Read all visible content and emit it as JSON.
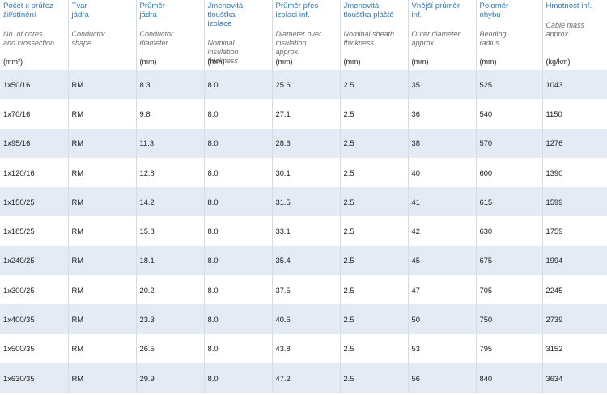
{
  "headers": [
    {
      "cz": "Počet x průřez\nžil/stínění",
      "en": "No. of cores\nand crossection",
      "unit": "(mm²)"
    },
    {
      "cz": "Tvar\njádra",
      "en": "Conductor\nshape",
      "unit": ""
    },
    {
      "cz": "Průměr\njádra",
      "en": "Conductor\ndiameter",
      "unit": "(mm)"
    },
    {
      "cz": "Jmenovitá\ntloušťka\nizolace",
      "en": "Nominal\ninsulation\nthickness",
      "unit": "(mm)"
    },
    {
      "cz": "Průměr přes\nizolaci inf.",
      "en": "Diameter over\ninsulation\napprox.",
      "unit": "(mm)"
    },
    {
      "cz": "Jmenovitá\ntloušťka pláště",
      "en": "Nominal sheath\nthickness",
      "unit": "(mm)"
    },
    {
      "cz": "Vnější průměr\ninf.",
      "en": "Outer diameter\napprox.",
      "unit": "(mm)"
    },
    {
      "cz": "Poloměr\nohybu",
      "en": "Bending\nradius",
      "unit": "(mm)"
    },
    {
      "cz": "Hmotnost inf.",
      "en": "Cable mass\napprox.",
      "unit": "(kg/km)"
    }
  ],
  "rows": [
    [
      "1x50/16",
      "RM",
      "8.3",
      "8.0",
      "25.6",
      "2.5",
      "35",
      "525",
      "1043"
    ],
    [
      "1x70/16",
      "RM",
      "9.8",
      "8.0",
      "27.1",
      "2.5",
      "36",
      "540",
      "1150"
    ],
    [
      "1x95/16",
      "RM",
      "11.3",
      "8.0",
      "28.6",
      "2.5",
      "38",
      "570",
      "1276"
    ],
    [
      "1x120/16",
      "RM",
      "12.8",
      "8.0",
      "30.1",
      "2.5",
      "40",
      "600",
      "1390"
    ],
    [
      "1x150/25",
      "RM",
      "14.2",
      "8.0",
      "31.5",
      "2.5",
      "41",
      "615",
      "1599"
    ],
    [
      "1x185/25",
      "RM",
      "15.8",
      "8.0",
      "33.1",
      "2.5",
      "42",
      "630",
      "1759"
    ],
    [
      "1x240/25",
      "RM",
      "18.1",
      "8.0",
      "35.4",
      "2.5",
      "45",
      "675",
      "1994"
    ],
    [
      "1x300/25",
      "RM",
      "20.2",
      "8.0",
      "37.5",
      "2.5",
      "47",
      "705",
      "2245"
    ],
    [
      "1x400/35",
      "RM",
      "23.3",
      "8.0",
      "40.6",
      "2.5",
      "50",
      "750",
      "2739"
    ],
    [
      "1x500/35",
      "RM",
      "26.5",
      "8.0",
      "43.8",
      "2.5",
      "53",
      "795",
      "3152"
    ],
    [
      "1x630/35",
      "RM",
      "29.9",
      "8.0",
      "47.2",
      "2.5",
      "56",
      "840",
      "3634"
    ]
  ]
}
